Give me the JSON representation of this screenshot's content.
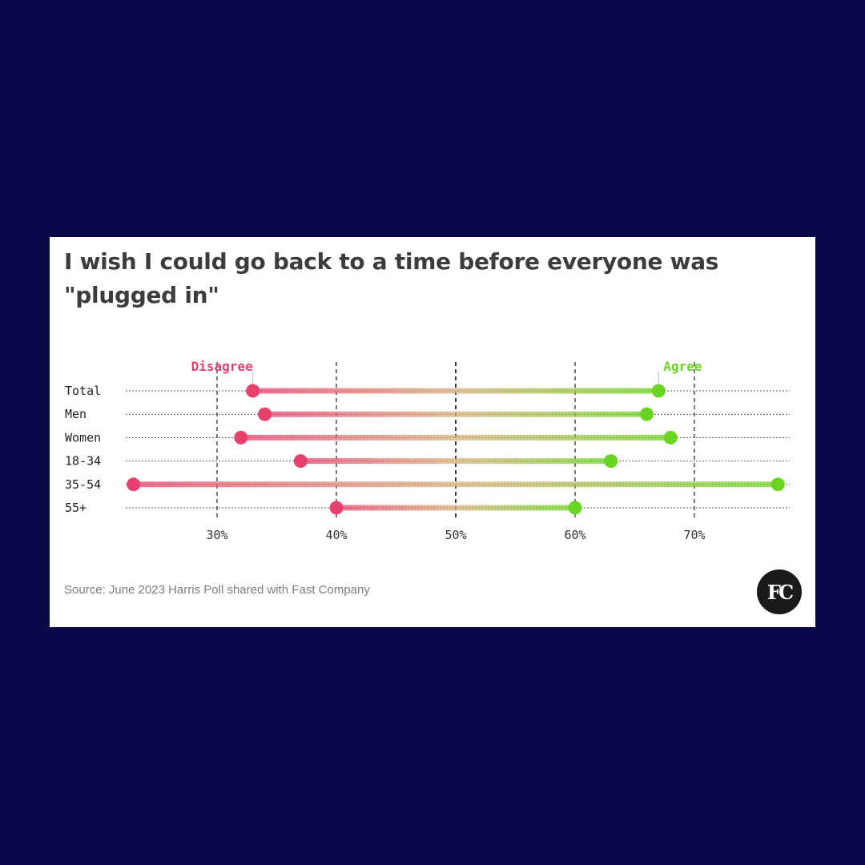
{
  "colors": {
    "page_background": "#0a0a4a",
    "card_background": "#ffffff",
    "disagree": "#e8406c",
    "agree": "#6ad521",
    "title": "#3c3c3c",
    "source": "#7d7d7d"
  },
  "logo": {
    "text": "FC",
    "icon": "fast-company-logo"
  },
  "source": "Source: June 2023 Harris Poll shared with Fast Company",
  "chart_data": {
    "type": "dumbbell",
    "title": "I wish I could go back to a time before everyone was \"plugged in\"",
    "xlabel": "",
    "ylabel": "",
    "xlim": [
      20,
      80
    ],
    "grid": true,
    "xticks": [
      30,
      40,
      50,
      60,
      70
    ],
    "xtick_labels": [
      "30%",
      "40%",
      "50%",
      "60%",
      "70%"
    ],
    "legend": [
      "Disagree",
      "Agree"
    ],
    "categories": [
      "Total",
      "Men",
      "Women",
      "18-34",
      "35-54",
      "55+"
    ],
    "series": [
      {
        "name": "Disagree",
        "color": "#e8406c",
        "values": [
          33,
          34,
          32,
          37,
          23,
          40
        ]
      },
      {
        "name": "Agree",
        "color": "#6ad521",
        "values": [
          67,
          66,
          68,
          63,
          77,
          60
        ]
      }
    ]
  }
}
